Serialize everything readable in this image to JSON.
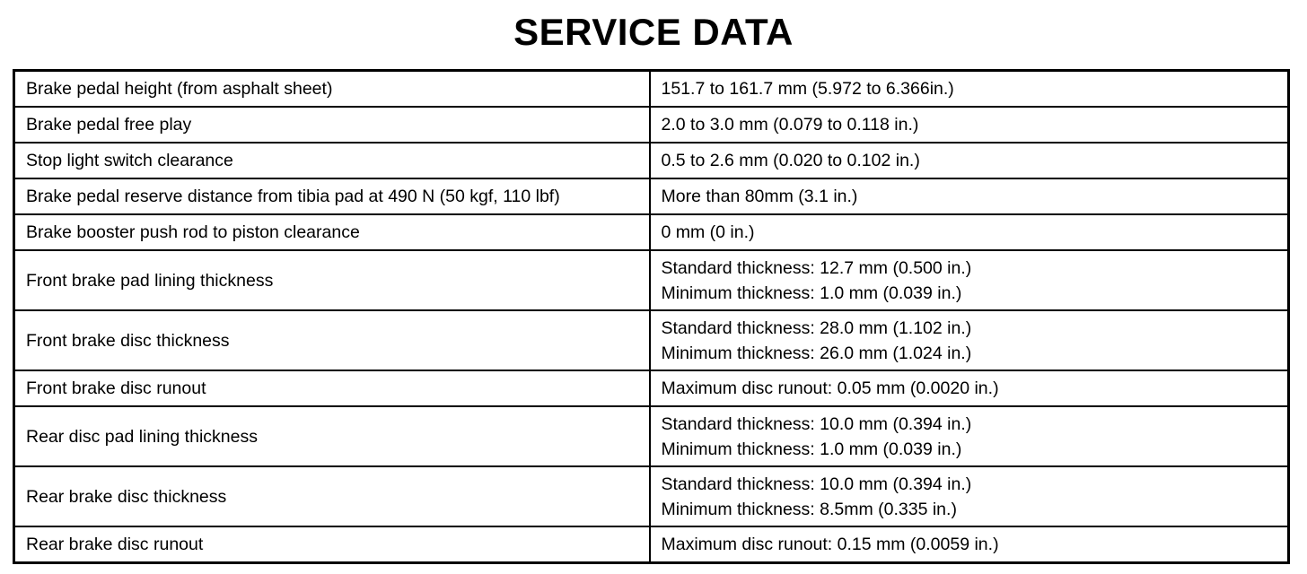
{
  "title": "SERVICE DATA",
  "table": {
    "rows": [
      {
        "item": "Brake pedal height (from asphalt sheet)",
        "values": [
          "151.7 to 161.7 mm (5.972 to 6.366in.)"
        ]
      },
      {
        "item": "Brake pedal free play",
        "values": [
          "2.0 to 3.0 mm (0.079 to 0.118 in.)"
        ]
      },
      {
        "item": "Stop light switch clearance",
        "values": [
          "0.5 to 2.6 mm (0.020 to 0.102 in.)"
        ]
      },
      {
        "item": "Brake pedal reserve distance from tibia pad at 490 N (50 kgf, 110 lbf)",
        "values": [
          "More than 80mm (3.1 in.)"
        ]
      },
      {
        "item": "Brake booster push rod to piston clearance",
        "values": [
          "0 mm (0 in.)"
        ]
      },
      {
        "item": "Front brake pad lining thickness",
        "values": [
          "Standard thickness: 12.7 mm (0.500 in.)",
          "Minimum thickness: 1.0 mm (0.039 in.)"
        ]
      },
      {
        "item": "Front brake disc thickness",
        "values": [
          "Standard thickness: 28.0 mm (1.102 in.)",
          "Minimum thickness: 26.0 mm (1.024 in.)"
        ]
      },
      {
        "item": "Front brake disc runout",
        "values": [
          "Maximum disc runout: 0.05 mm (0.0020 in.)"
        ]
      },
      {
        "item": "Rear disc pad lining thickness",
        "values": [
          "Standard thickness: 10.0 mm (0.394 in.)",
          "Minimum thickness: 1.0 mm (0.039 in.)"
        ]
      },
      {
        "item": "Rear brake disc thickness",
        "values": [
          "Standard thickness: 10.0 mm (0.394 in.)",
          "Minimum thickness: 8.5mm (0.335 in.)"
        ]
      },
      {
        "item": "Rear brake disc runout",
        "values": [
          "Maximum disc runout: 0.15 mm (0.0059 in.)"
        ]
      }
    ]
  }
}
